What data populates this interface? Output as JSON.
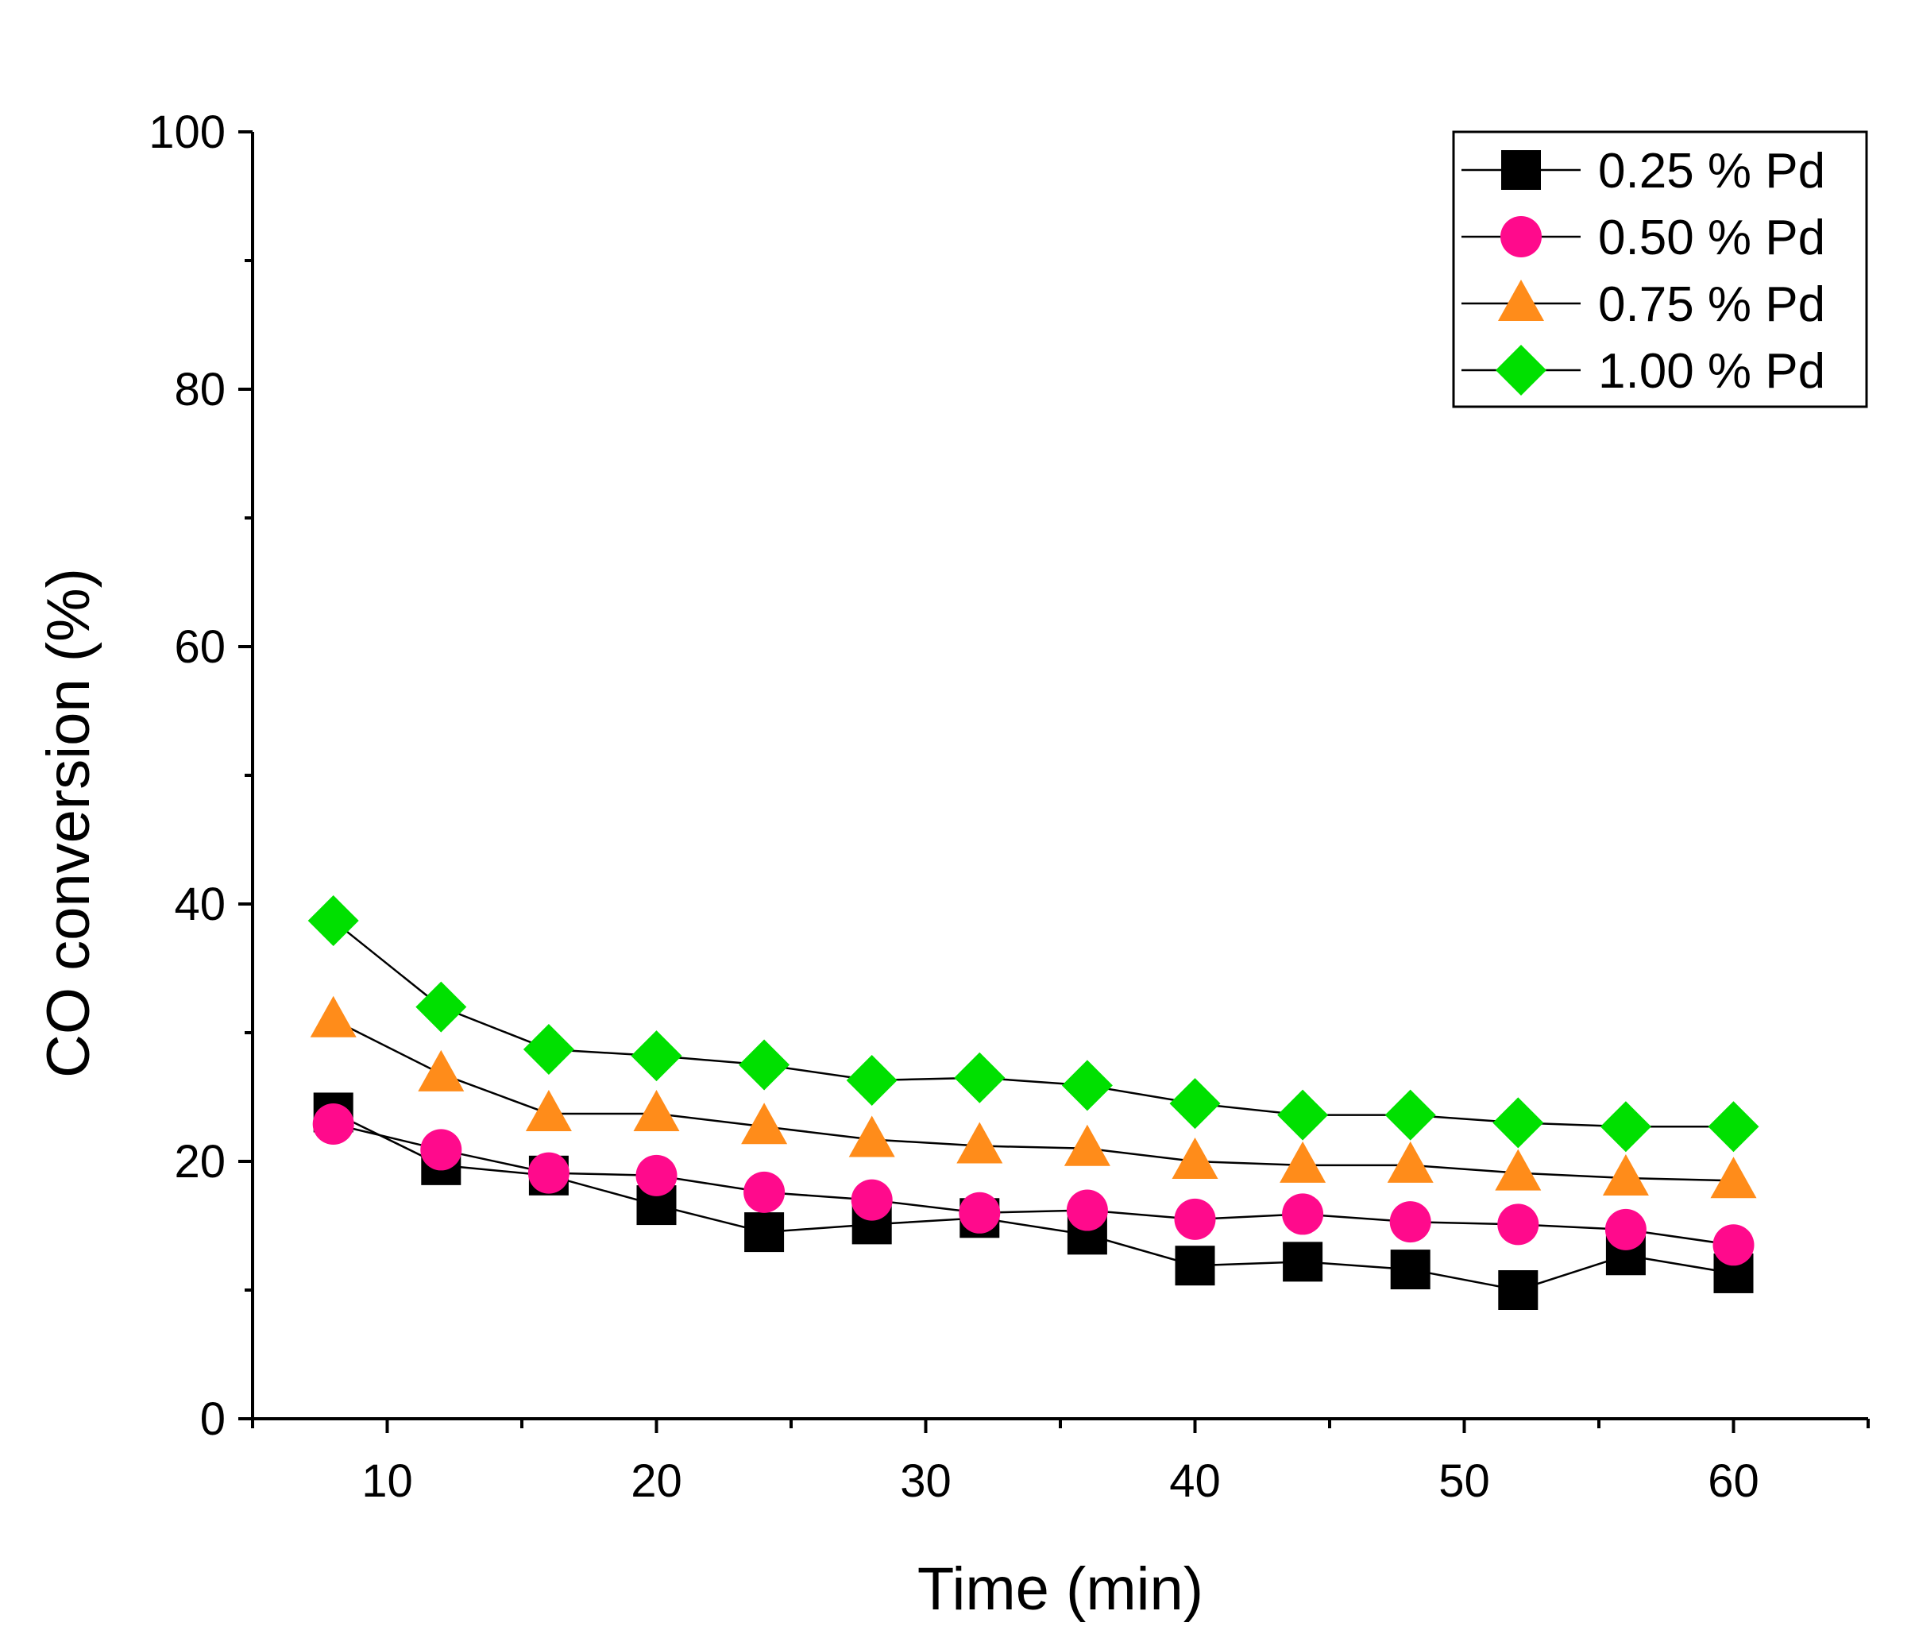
{
  "chart_data": {
    "type": "line",
    "title": "",
    "xlabel": "Time (min)",
    "ylabel": "CO conversion (%)",
    "xlim": [
      5,
      65
    ],
    "ylim": [
      0,
      100
    ],
    "xticks": [
      10,
      20,
      30,
      40,
      50,
      60
    ],
    "xtick_labels": [
      "10",
      "20",
      "30",
      "40",
      "50",
      "60"
    ],
    "yticks": [
      0,
      20,
      40,
      60,
      80,
      100
    ],
    "ytick_labels": [
      "0",
      "20",
      "40",
      "60",
      "80",
      "100"
    ],
    "x_minor_ticks": [
      5,
      15,
      25,
      35,
      45,
      55,
      65
    ],
    "y_minor_ticks": [
      10,
      30,
      50,
      70,
      90
    ],
    "grid": false,
    "legend_position": "top-right",
    "x": [
      8,
      12,
      16,
      20,
      24,
      28,
      32,
      36,
      40,
      44,
      48,
      52,
      56,
      60
    ],
    "series": [
      {
        "name": "0.25 % Pd",
        "marker": "square",
        "color": "#000000",
        "values": [
          23.8,
          19.7,
          18.9,
          16.6,
          14.5,
          15.1,
          15.6,
          14.3,
          11.9,
          12.2,
          11.6,
          10.0,
          12.7,
          11.3
        ]
      },
      {
        "name": "0.50 % Pd",
        "marker": "circle",
        "color": "#ff0a8c",
        "values": [
          22.9,
          20.9,
          19.1,
          18.9,
          17.6,
          17.0,
          16.0,
          16.2,
          15.5,
          15.9,
          15.3,
          15.1,
          14.7,
          13.5
        ]
      },
      {
        "name": "0.75 % Pd",
        "marker": "triangle",
        "color": "#ff8c1a",
        "values": [
          31.0,
          26.8,
          23.7,
          23.7,
          22.7,
          21.7,
          21.2,
          21.0,
          20.0,
          19.7,
          19.7,
          19.1,
          18.7,
          18.5
        ]
      },
      {
        "name": "1.00 % Pd",
        "marker": "diamond",
        "color": "#00e000",
        "values": [
          38.7,
          32.0,
          28.7,
          28.2,
          27.5,
          26.3,
          26.5,
          25.9,
          24.5,
          23.6,
          23.6,
          23.0,
          22.7,
          22.7
        ]
      }
    ]
  }
}
